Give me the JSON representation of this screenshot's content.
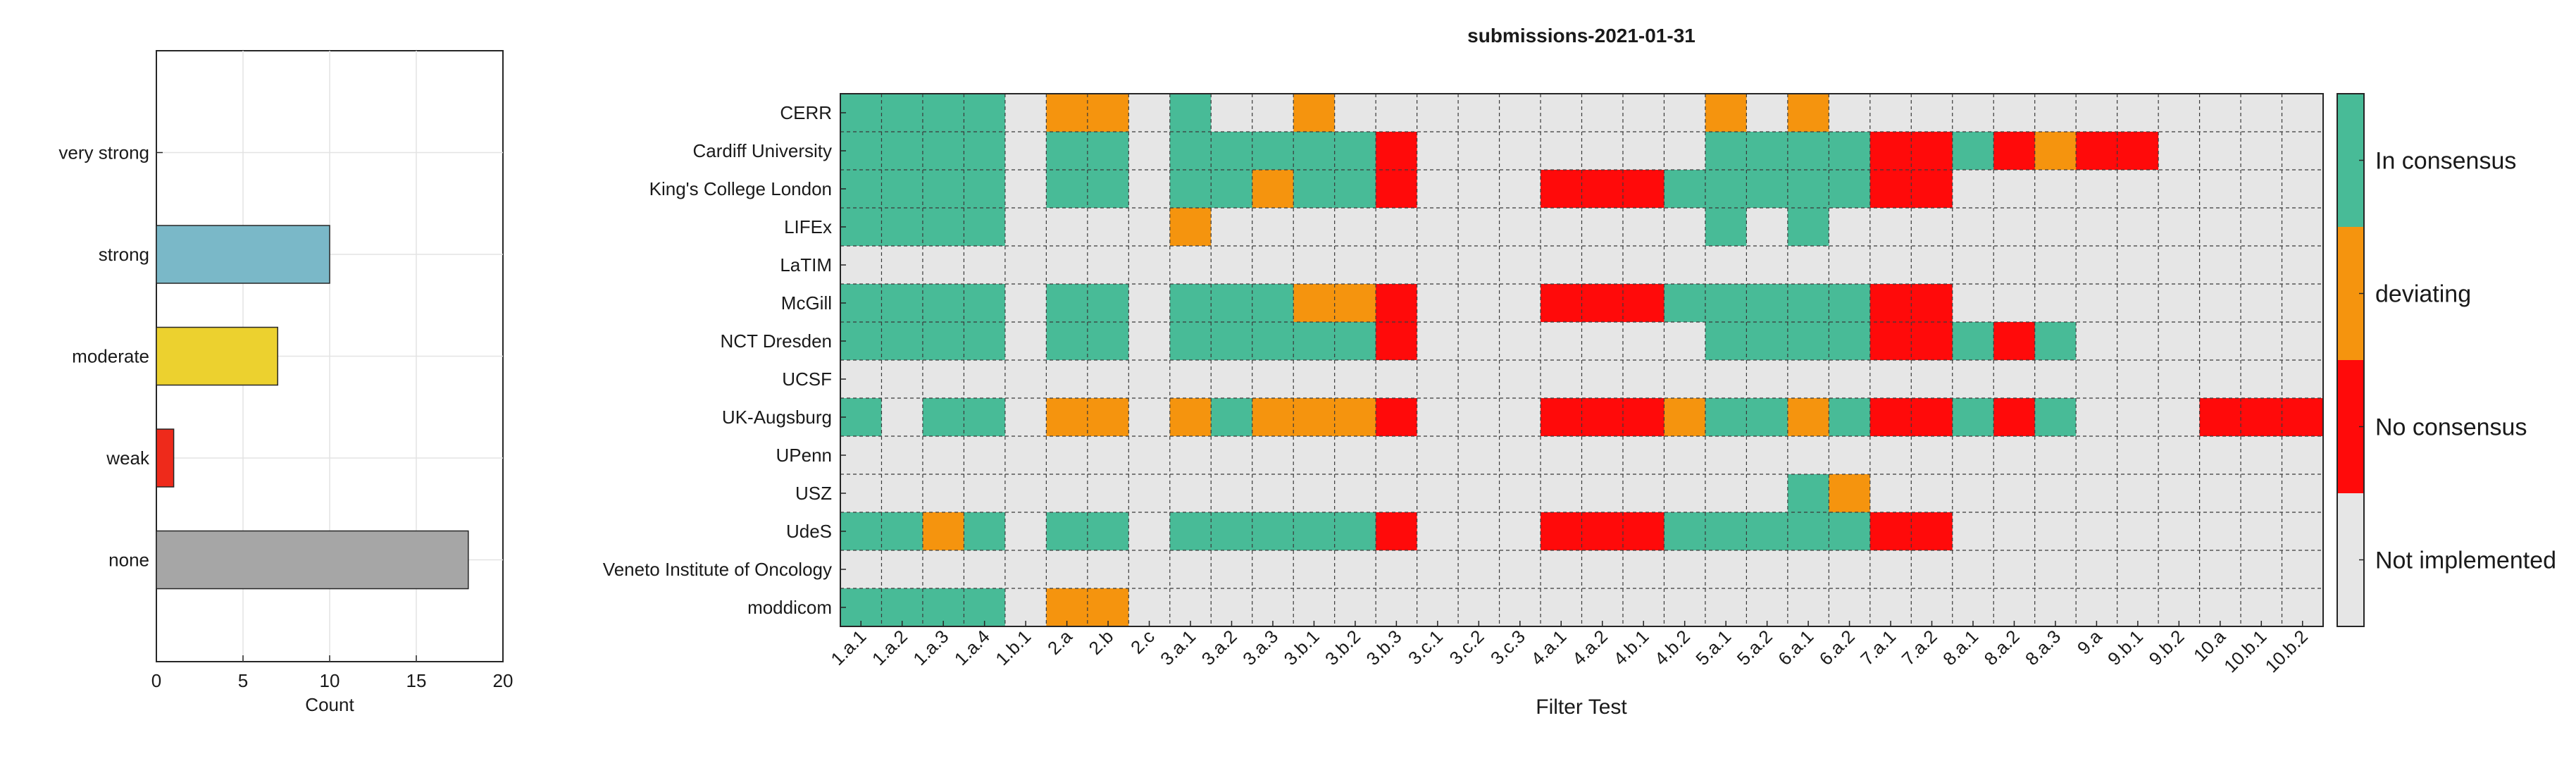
{
  "chart_data": [
    {
      "type": "bar",
      "orientation": "horizontal",
      "categories": [
        "very strong",
        "strong",
        "moderate",
        "weak",
        "none"
      ],
      "values": [
        0,
        10,
        7,
        1,
        18
      ],
      "bar_colors": [
        "#7ab8c8",
        "#7ab8c8",
        "#ecd12f",
        "#ee2a1b",
        "#a6a6a6"
      ],
      "xlabel": "Count",
      "xlim": [
        0,
        20
      ],
      "xticks": [
        0,
        5,
        10,
        15,
        20
      ],
      "grid": true
    },
    {
      "type": "heatmap",
      "title": "submissions-2021-01-31",
      "xlabel": "Filter Test",
      "rows": [
        "CERR",
        "Cardiff University",
        "King's College London",
        "LIFEx",
        "LaTIM",
        "McGill",
        "NCT Dresden",
        "UCSF",
        "UK-Augsburg",
        "UPenn",
        "USZ",
        "UdeS",
        "Veneto Institute of Oncology",
        "moddicom"
      ],
      "columns": [
        "1.a.1",
        "1.a.2",
        "1.a.3",
        "1.a.4",
        "1.b.1",
        "2.a",
        "2.b",
        "2.c",
        "3.a.1",
        "3.a.2",
        "3.a.3",
        "3.b.1",
        "3.b.2",
        "3.b.3",
        "3.c.1",
        "3.c.2",
        "3.c.3",
        "4.a.1",
        "4.a.2",
        "4.b.1",
        "4.b.2",
        "5.a.1",
        "5.a.2",
        "6.a.1",
        "6.a.2",
        "7.a.1",
        "7.a.2",
        "8.a.1",
        "8.a.2",
        "8.a.3",
        "9.a",
        "9.b.1",
        "9.b.2",
        "10.a",
        "10.b.1",
        "10.b.2"
      ],
      "legend": [
        {
          "code": "C",
          "label": "In consensus",
          "color": "#48bb97"
        },
        {
          "code": "D",
          "label": "deviating",
          "color": "#f5940e"
        },
        {
          "code": "N",
          "label": "No consensus",
          "color": "#ff0a0a"
        },
        {
          "code": "X",
          "label": "Not implemented",
          "color": "#e6e6e6"
        }
      ],
      "legend_position": "right",
      "grid": true,
      "cells": [
        "CCCCXDDXCXXDXXXXXXXXXDXDXXXXXXXXXXXX",
        "CCCCXCCXCCCCCNXXXXXXXCCCCNNCNDNNXXXX",
        "CCCCXCCXCCDCCNXXXNNNCCCCCNNXXXXXXXXX",
        "CCCCXXXXDXXXXXXXXXXXXCXCXXXXXXXXXXXX",
        "XXXXXXXXXXXXXXXXXXXXXXXXXXXXXXXXXXXX",
        "CCCCXCCXCCCDDNXXXNNNCCCCCNNXXXXXXXXX",
        "CCCCXCCXCCCCCNXXXXXXXCCCCNNCNCXXXXXX",
        "XXXXXXXXXXXXXXXXXXXXXXXXXXXXXXXXXXXX",
        "CXCCXDDXDCDDDNXXXNNNDCCDCNNCNCXXXNNN",
        "XXXXXXXXXXXXXXXXXXXXXXXXXXXXXXXXXXXX",
        "XXXXXXXXXXXXXXXXXXXXXXXCDXXXXXXXXXXX",
        "CCDCXCCXCCCCCNXXXNNNCCCCCNNXXXXXXXXX",
        "XXXXXXXXXXXXXXXXXXXXXXXXXXXXXXXXXXXX",
        "CCCCXDDXXXXXXXXXXXXXXXXXXXXXXXXXXXXX"
      ]
    }
  ]
}
